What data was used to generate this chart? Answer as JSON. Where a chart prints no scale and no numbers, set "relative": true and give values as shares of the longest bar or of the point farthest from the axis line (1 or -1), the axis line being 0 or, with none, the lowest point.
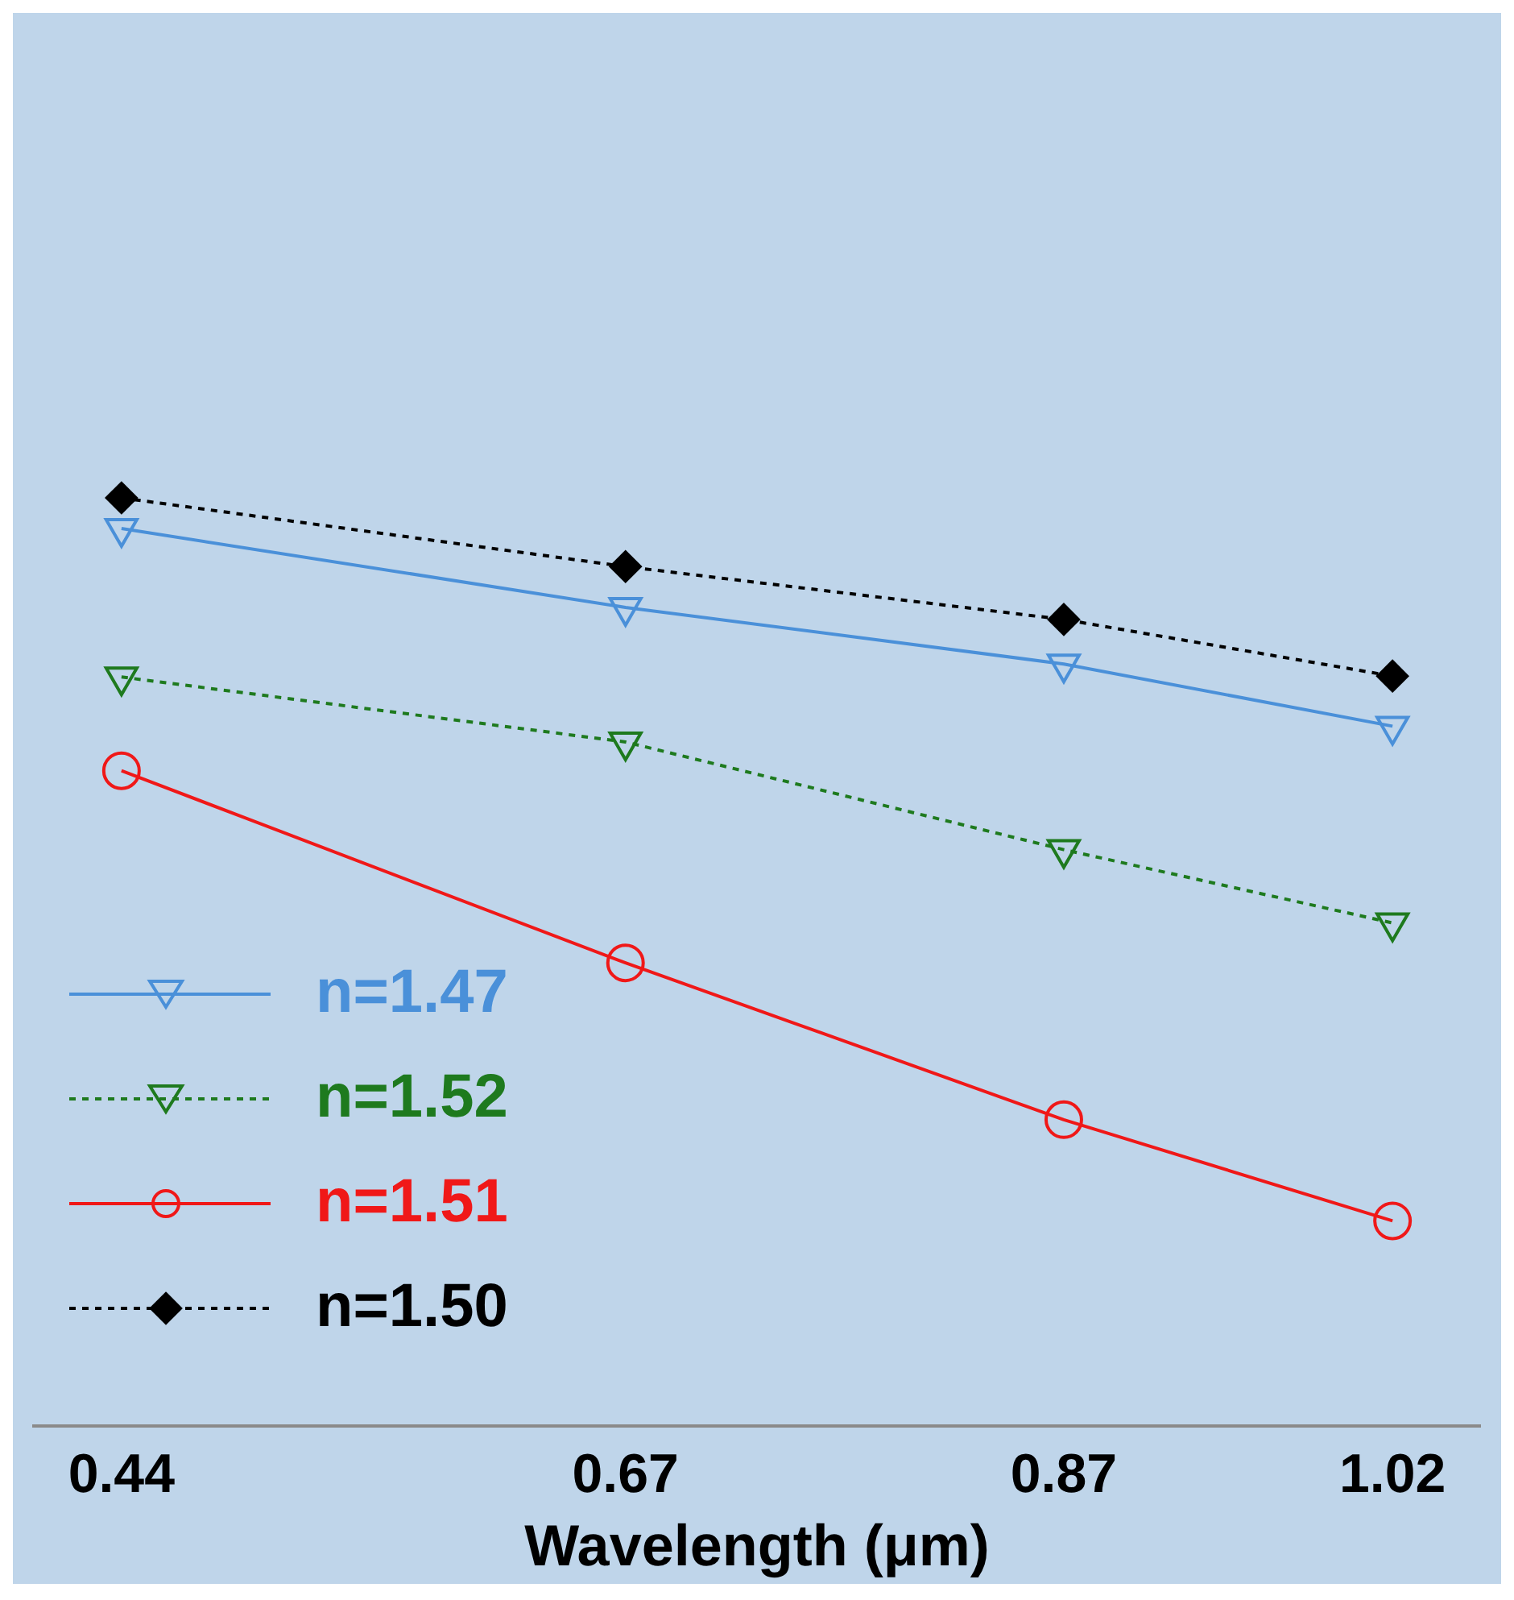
{
  "chart_data": {
    "type": "line",
    "xlabel": "Wavelength (μm)",
    "relative": true,
    "x": [
      0.44,
      0.67,
      0.87,
      1.02
    ],
    "xlim": [
      0.4,
      1.06
    ],
    "xticks": [
      0.44,
      0.67,
      0.87,
      1.02
    ],
    "grid": false,
    "legend": "bottom left",
    "series": [
      {
        "name": "n=1.47",
        "color": "#4a90d9",
        "marker": "triangle",
        "line_style": "solid",
        "values": [
          0.967,
          0.882,
          0.821,
          0.754
        ]
      },
      {
        "name": "n=1.52",
        "color": "#1e7a1e",
        "marker": "triangle",
        "line_style": "dotted",
        "values": [
          0.807,
          0.737,
          0.621,
          0.542
        ]
      },
      {
        "name": "n=1.51",
        "color": "#f01818",
        "marker": "circle",
        "line_style": "solid",
        "values": [
          0.706,
          0.499,
          0.33,
          0.221
        ]
      },
      {
        "name": "n=1.50",
        "color": "#000000",
        "marker": "diamond",
        "line_style": "dotted",
        "values": [
          1,
          0.926,
          0.869,
          0.808
        ]
      }
    ]
  }
}
